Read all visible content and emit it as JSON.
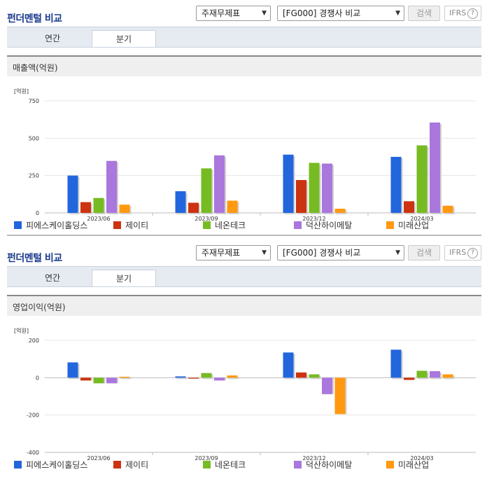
{
  "panels": [
    {
      "header": {
        "title": "펀더멘털 비교",
        "select1": "주재무제표",
        "select2": "[FG000] 경쟁사 비교",
        "search": "검색",
        "ifrs": "IFRS",
        "help": "?"
      },
      "tabs": [
        "연간",
        "분기"
      ],
      "active_tab": 1,
      "chart_title": "매출액(억원)"
    },
    {
      "header": {
        "title": "펀더멘털 비교",
        "select1": "주재무제표",
        "select2": "[FG000] 경쟁사 비교",
        "search": "검색",
        "ifrs": "IFRS",
        "help": "?"
      },
      "tabs": [
        "연간",
        "분기"
      ],
      "active_tab": 1,
      "chart_title": "영업이익(억원)"
    }
  ],
  "colors": [
    "#2266dd",
    "#cc3311",
    "#77bb22",
    "#aa77dd",
    "#ff9911"
  ],
  "chart_data": [
    {
      "type": "bar",
      "unit_label": "[억원]",
      "categories": [
        "2023/06",
        "2023/09",
        "2023/12",
        "2024/03"
      ],
      "series": [
        {
          "name": "피에스케이홀딩스",
          "values": [
            250,
            145,
            390,
            375
          ]
        },
        {
          "name": "제이티",
          "values": [
            72,
            68,
            220,
            78
          ]
        },
        {
          "name": "네온테크",
          "values": [
            100,
            298,
            335,
            452
          ]
        },
        {
          "name": "덕산하이메탈",
          "values": [
            348,
            385,
            330,
            605
          ]
        },
        {
          "name": "미래산업",
          "values": [
            55,
            82,
            28,
            48
          ]
        }
      ],
      "yticks": [
        0,
        250,
        500,
        750
      ],
      "ylim": [
        0,
        750
      ],
      "legend": "bottom"
    },
    {
      "type": "bar",
      "unit_label": "[억원]",
      "categories": [
        "2023/06",
        "2023/09",
        "2023/12",
        "2024/03"
      ],
      "series": [
        {
          "name": "피에스케이홀딩스",
          "values": [
            82,
            7,
            135,
            150
          ]
        },
        {
          "name": "제이티",
          "values": [
            -15,
            -5,
            28,
            -12
          ]
        },
        {
          "name": "네온테크",
          "values": [
            -30,
            25,
            18,
            37
          ]
        },
        {
          "name": "덕산하이메탈",
          "values": [
            -30,
            -15,
            -88,
            35
          ]
        },
        {
          "name": "미래산업",
          "values": [
            5,
            12,
            -195,
            18
          ]
        }
      ],
      "yticks": [
        -400,
        -200,
        0,
        200
      ],
      "ylim": [
        -400,
        200
      ],
      "legend": "bottom"
    }
  ]
}
